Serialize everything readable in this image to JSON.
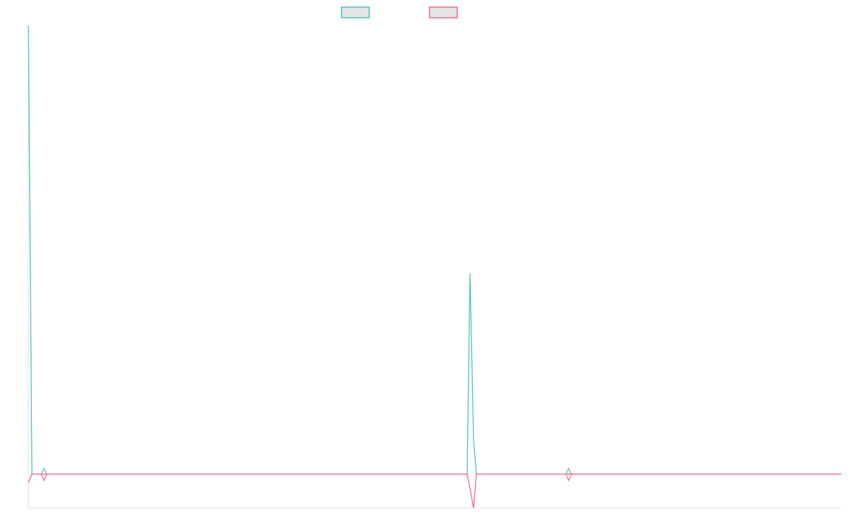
{
  "chart_data": {
    "type": "line",
    "title": "",
    "xlabel": "",
    "ylabel": "",
    "xlim": [
      0,
      229
    ],
    "ylim": [
      -7,
      93
    ],
    "grid": false,
    "legend_position": "top",
    "series": [
      {
        "color": "#4bc0c0",
        "x": [
          0,
          1,
          4.4,
          123.6,
          124.4,
          125.4,
          126.2,
          152.2,
          229
        ],
        "values": [
          93,
          0,
          0,
          0,
          41.6,
          7,
          0,
          0,
          0
        ],
        "markers": [
          4.4,
          152.2
        ]
      },
      {
        "color": "#ff6384",
        "x": [
          0,
          1,
          4.4,
          123.6,
          124.4,
          125.4,
          126.2,
          152.2,
          229
        ],
        "values": [
          -1.8,
          0,
          0,
          0,
          -3,
          -7,
          0,
          0,
          0
        ],
        "markers": [
          4.4,
          152.2
        ]
      }
    ],
    "legend_fill": "#e5e5e5",
    "axis_color": "#e0e0e0"
  }
}
